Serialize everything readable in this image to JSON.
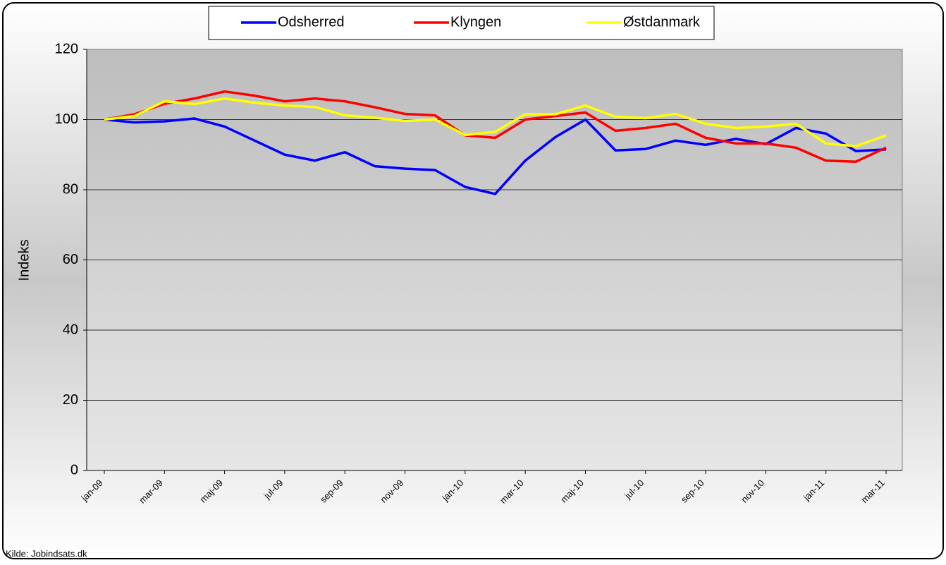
{
  "chart_data": {
    "type": "line",
    "y_label": "Indeks",
    "source": "Kilde: Jobindsats.dk",
    "categories": [
      "jan-09",
      null,
      "mar-09",
      null,
      "maj-09",
      null,
      "jul-09",
      null,
      "sep-09",
      null,
      "nov-09",
      null,
      "jan-10",
      null,
      "mar-10",
      null,
      "maj-10",
      null,
      "jul-10",
      null,
      "sep-10",
      null,
      "nov-10",
      null,
      "jan-11",
      null,
      "mar-11"
    ],
    "series": [
      {
        "name": "Odsherred",
        "color": "#0000ff",
        "values": [
          100,
          99.2,
          99.5,
          100.3,
          98,
          94,
          90,
          88.3,
          90.7,
          86.7,
          86,
          85.6,
          80.8,
          78.8,
          88.3,
          95,
          100,
          91.2,
          91.6,
          94,
          92.8,
          94.5,
          93,
          97.6,
          96,
          91,
          91.5
        ]
      },
      {
        "name": "Klyngen",
        "color": "#ff0000",
        "values": [
          100,
          101.5,
          104.5,
          106,
          108,
          106.8,
          105.2,
          106,
          105.2,
          103.5,
          101.6,
          101.2,
          95.5,
          94.8,
          100,
          101,
          102,
          96.8,
          97.6,
          98.8,
          94.8,
          93.2,
          93.2,
          92,
          88.3,
          88,
          92
        ]
      },
      {
        "name": "Østdanmark",
        "color": "#ffff00",
        "values": [
          100,
          101,
          105.2,
          104.4,
          106,
          104.8,
          104,
          103.6,
          101.2,
          100.5,
          99.6,
          100,
          95.6,
          96.5,
          101.5,
          101.5,
          104,
          100.8,
          100.4,
          101.6,
          98.8,
          97.6,
          98,
          98.8,
          93.2,
          92.4,
          95.5
        ]
      }
    ],
    "ylim": [
      0,
      120
    ],
    "yticks": [
      0,
      20,
      40,
      60,
      80,
      100,
      120
    ],
    "grid": true,
    "legend": "top"
  }
}
